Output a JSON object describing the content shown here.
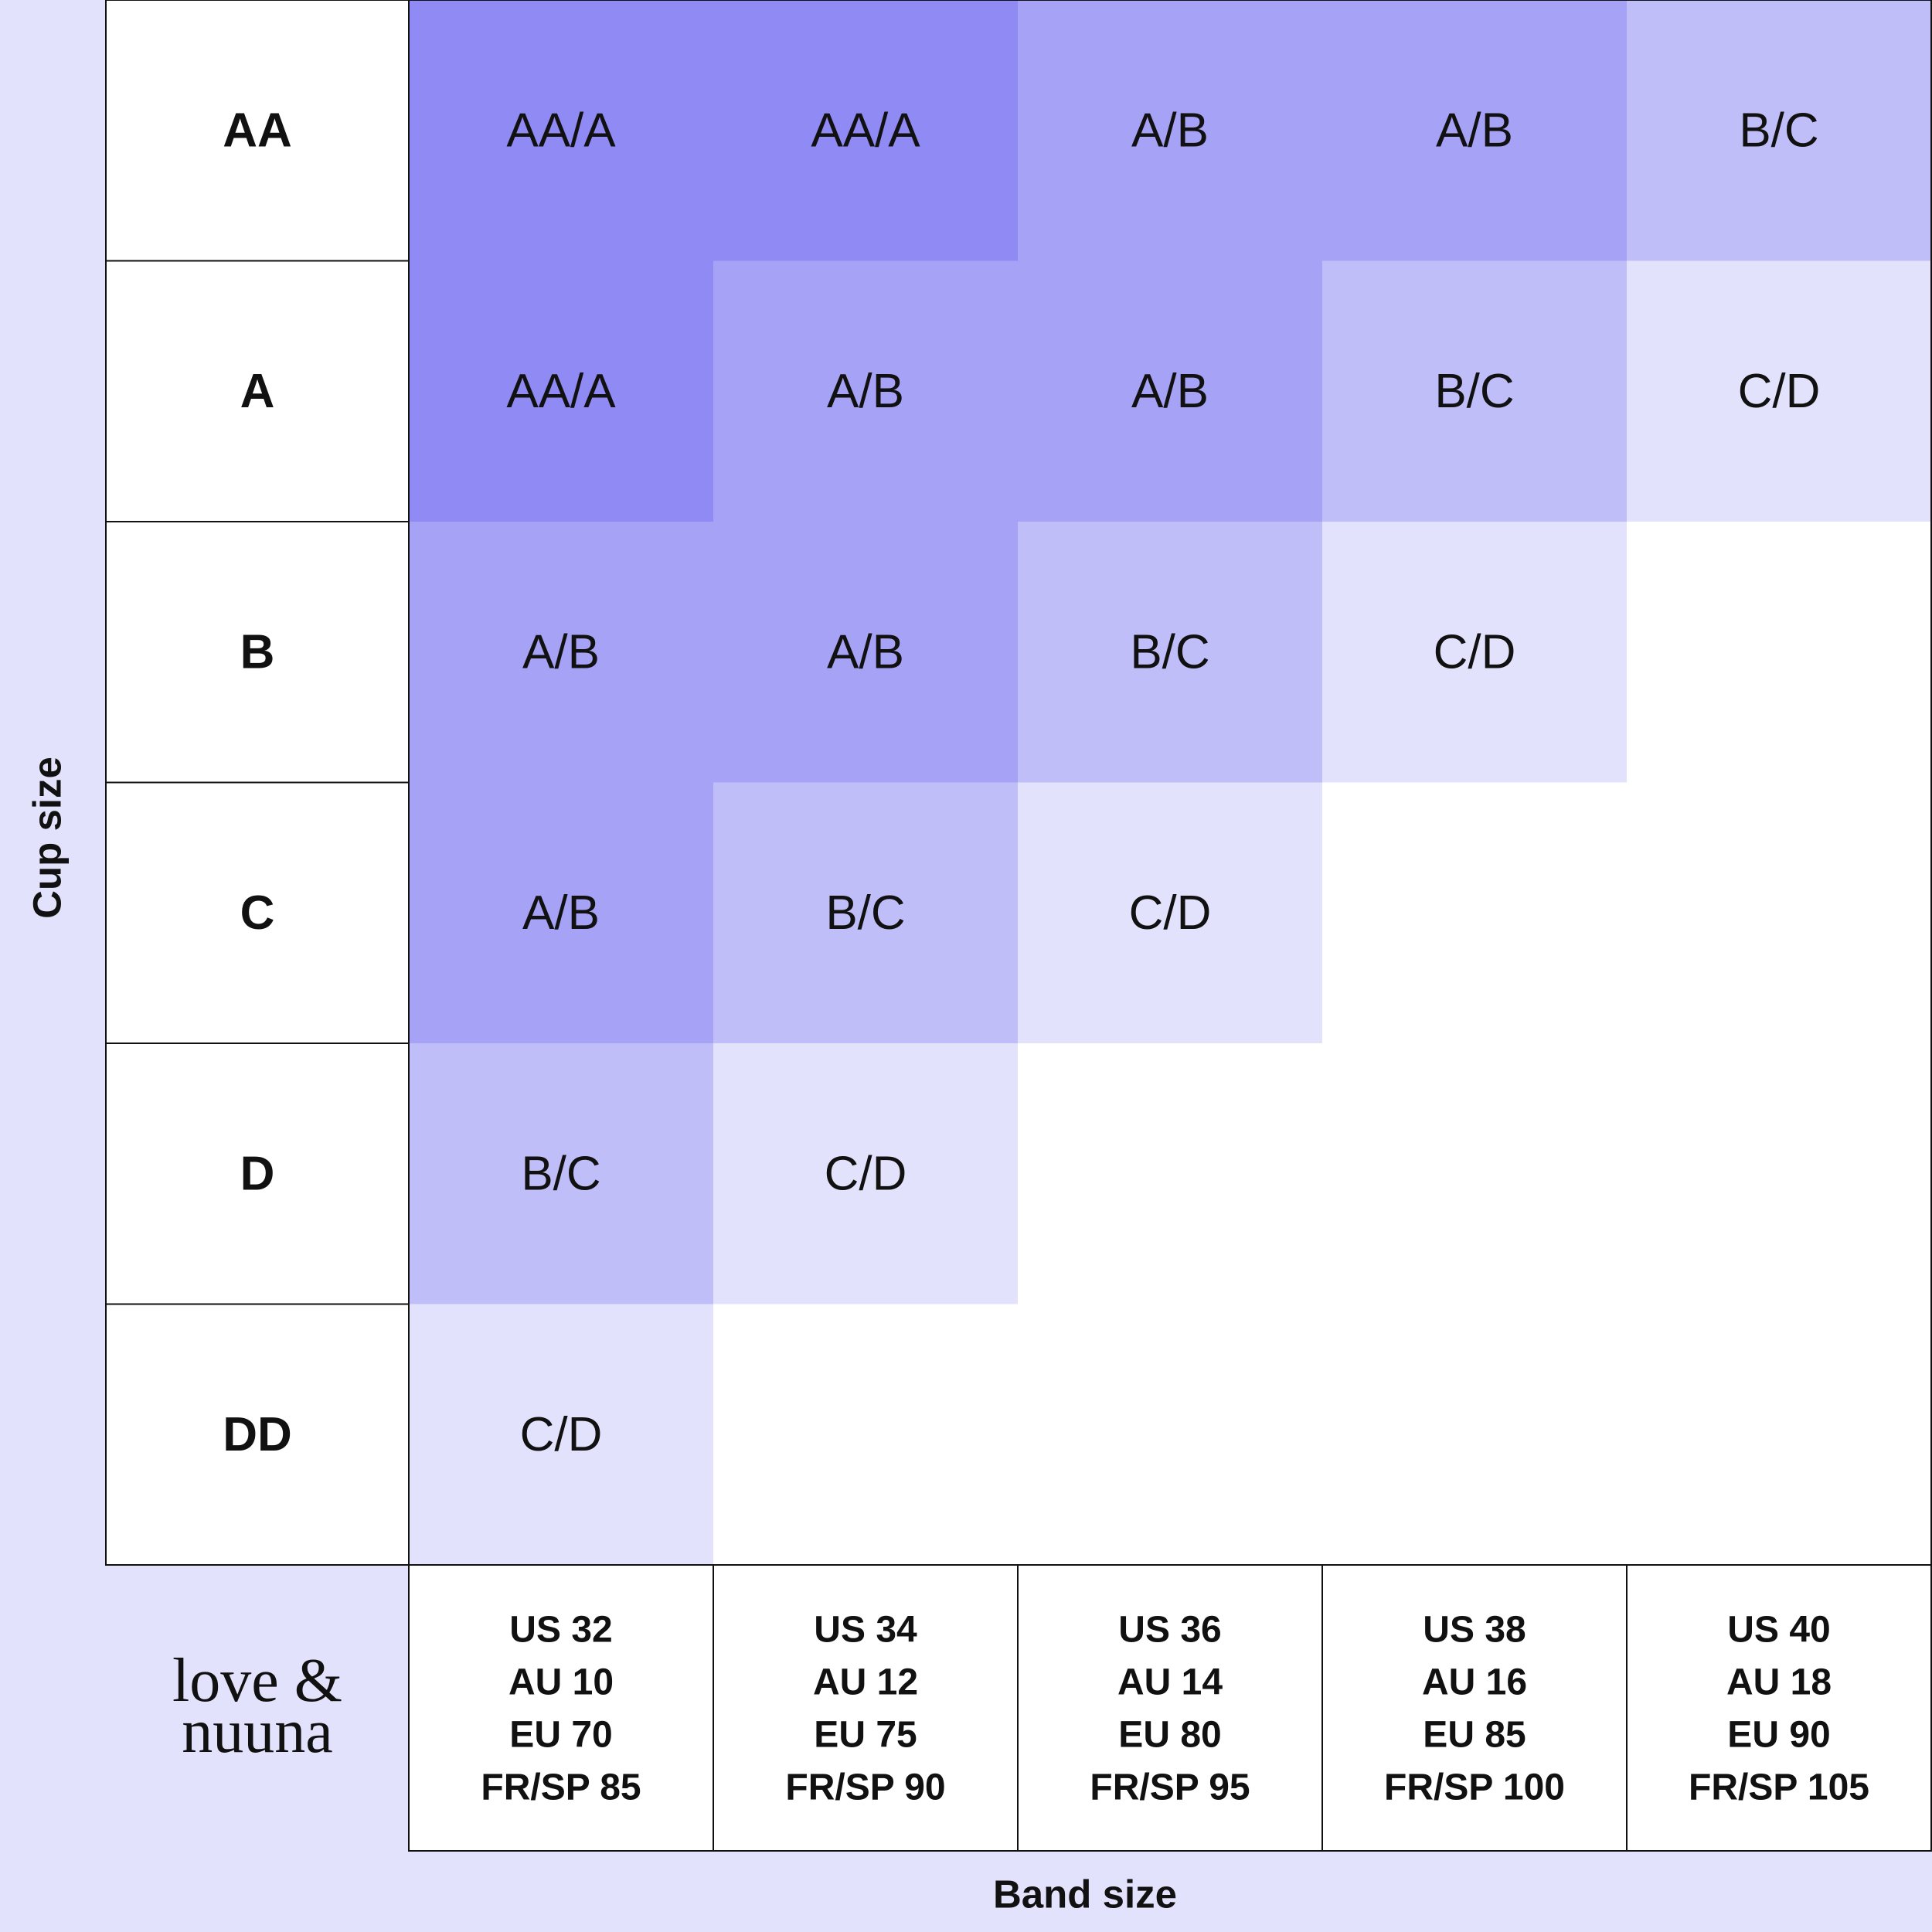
{
  "y_axis_label": "Cup size",
  "x_axis_label": "Band size",
  "logo": [
    "love &",
    "nuuna"
  ],
  "bands": [
    [
      "US 32",
      "AU 10",
      "EU 70",
      "FR/SP 85"
    ],
    [
      "US 34",
      "AU 12",
      "EU 75",
      "FR/SP 90"
    ],
    [
      "US 36",
      "AU 14",
      "EU 80",
      "FR/SP 95"
    ],
    [
      "US 38",
      "AU 16",
      "EU 85",
      "FR/SP 100"
    ],
    [
      "US 40",
      "AU 18",
      "EU 90",
      "FR/SP 105"
    ]
  ],
  "rows": [
    {
      "cup": "AA",
      "cells": [
        "AA/A",
        "AA/A",
        "A/B",
        "A/B",
        "B/C"
      ],
      "colors": [
        "#8f8af4",
        "#8f8af4",
        "#a6a2f6",
        "#a6a2f6",
        "#c0bef8"
      ]
    },
    {
      "cup": "A",
      "cells": [
        "AA/A",
        "A/B",
        "A/B",
        "B/C",
        "C/D"
      ],
      "colors": [
        "#8f8af4",
        "#a6a2f6",
        "#a6a2f6",
        "#c0bef8",
        "#e3e2fc"
      ]
    },
    {
      "cup": "B",
      "cells": [
        "A/B",
        "A/B",
        "B/C",
        "C/D",
        null
      ],
      "colors": [
        "#a6a2f6",
        "#a6a2f6",
        "#c0bef8",
        "#e3e2fc",
        "#ffffff"
      ]
    },
    {
      "cup": "C",
      "cells": [
        "A/B",
        "B/C",
        "C/D",
        null,
        null
      ],
      "colors": [
        "#a6a2f6",
        "#c0bef8",
        "#e3e2fc",
        "#ffffff",
        "#ffffff"
      ]
    },
    {
      "cup": "D",
      "cells": [
        "B/C",
        "C/D",
        null,
        null,
        null
      ],
      "colors": [
        "#c0bef8",
        "#e3e2fc",
        "#ffffff",
        "#ffffff",
        "#ffffff"
      ]
    },
    {
      "cup": "DD",
      "cells": [
        "C/D",
        null,
        null,
        null,
        null
      ],
      "colors": [
        "#e3e2fc",
        "#ffffff",
        "#ffffff",
        "#ffffff",
        "#ffffff"
      ]
    }
  ]
}
